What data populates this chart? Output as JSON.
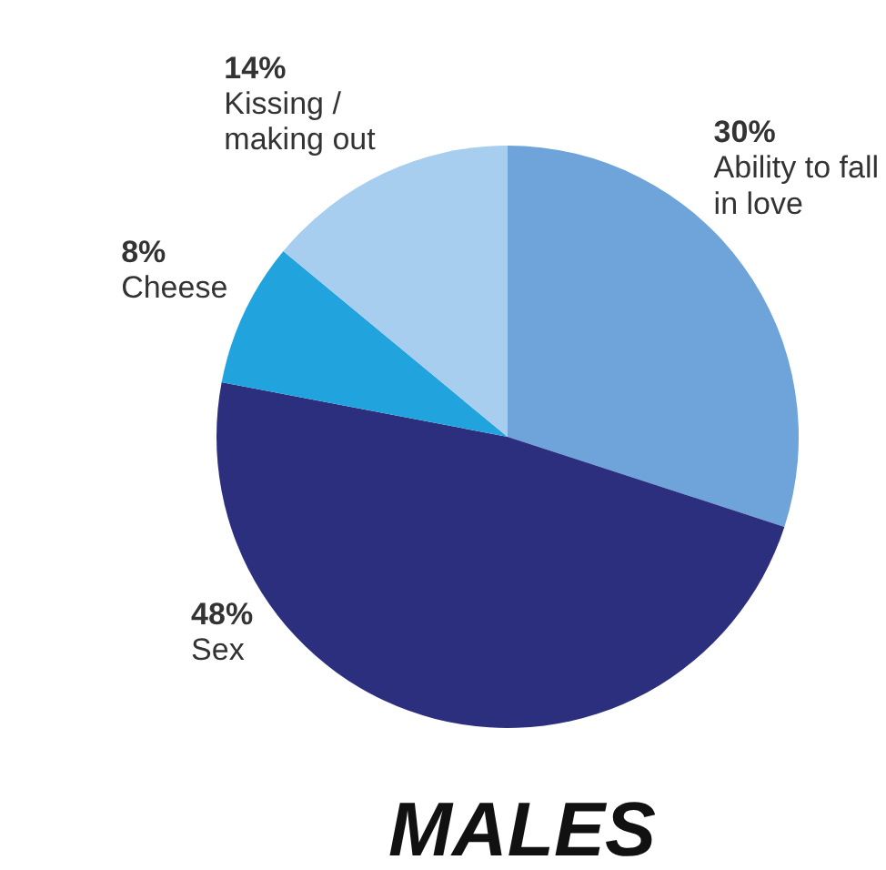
{
  "chart_data": {
    "type": "pie",
    "title": "MALES",
    "categories": [
      "Ability to fall in love",
      "Sex",
      "Cheese",
      "Kissing / making out"
    ],
    "values": [
      30,
      48,
      8,
      14
    ],
    "value_labels": [
      "30%",
      "48%",
      "8%",
      "14%"
    ],
    "colors": [
      "#6ea4d9",
      "#2b2f7e",
      "#21a4dd",
      "#a7cdef"
    ]
  }
}
